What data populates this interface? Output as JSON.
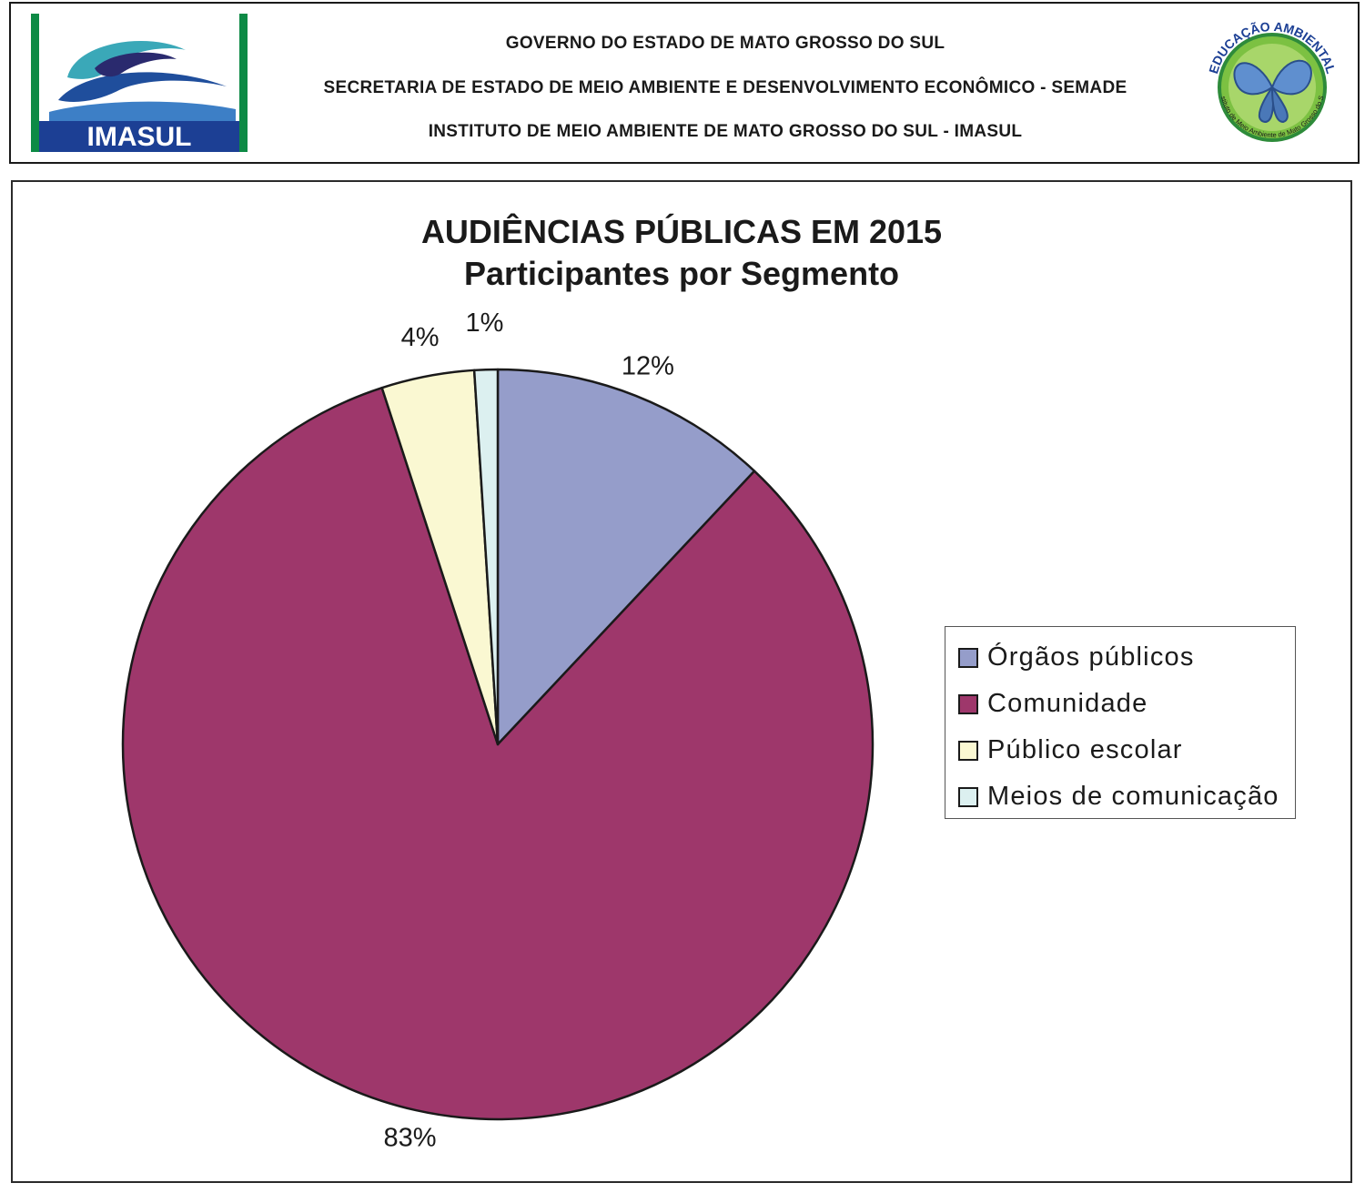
{
  "header": {
    "line1": "GOVERNO DO ESTADO DE MATO GROSSO DO SUL",
    "line2": "SECRETARIA DE ESTADO DE MEIO AMBIENTE E DESENVOLVIMENTO ECONÔMICO - SEMADE",
    "line3": "INSTITUTO DE MEIO AMBIENTE DE MATO GROSSO DO SUL - IMASUL",
    "logo_left_text": "IMASUL",
    "logo_right_top": "EDUCAÇÃO AMBIENTAL",
    "logo_right_bottom": "Instituto de Meio Ambiente de Mato Grosso do Sul"
  },
  "chart_data": {
    "type": "pie",
    "title": "AUDIÊNCIAS PÚBLICAS EM 2015",
    "subtitle": "Participantes por Segmento",
    "categories": [
      "Órgãos públicos",
      "Comunidade",
      "Público escolar",
      "Meios de comunicação"
    ],
    "values": [
      12,
      83,
      4,
      1
    ],
    "value_labels": [
      "12%",
      "83%",
      "4%",
      "1%"
    ],
    "colors": [
      "#959dca",
      "#9e376b",
      "#faf8d2",
      "#dcf0f0"
    ],
    "legend_position": "right"
  }
}
